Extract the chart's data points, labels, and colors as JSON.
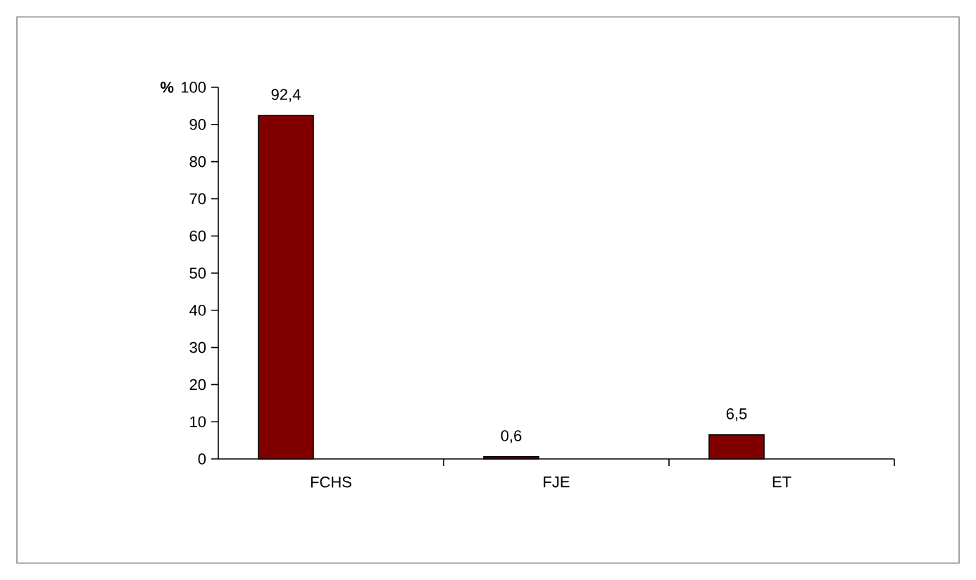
{
  "chart_data": {
    "type": "bar",
    "ylabel": "%",
    "categories": [
      "FCHS",
      "FJE",
      "ET"
    ],
    "values": [
      92.4,
      0.6,
      6.5
    ],
    "value_labels": [
      "92,4",
      "0,6",
      "6,5"
    ],
    "color": "#800000",
    "ylim": [
      0,
      100
    ],
    "yticks": [
      0,
      10,
      20,
      30,
      40,
      50,
      60,
      70,
      80,
      90,
      100
    ],
    "grid": false
  }
}
